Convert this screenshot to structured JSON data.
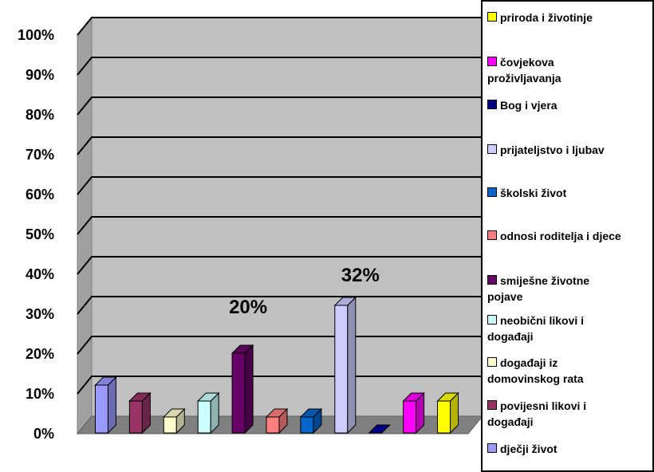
{
  "chart_data": {
    "type": "bar",
    "title": "",
    "xlabel": "",
    "ylabel": "",
    "ylim": [
      0,
      100
    ],
    "y_ticks": [
      "0%",
      "10%",
      "20%",
      "30%",
      "40%",
      "50%",
      "60%",
      "70%",
      "80%",
      "90%",
      "100%"
    ],
    "grid": true,
    "legend_position": "right",
    "series": [
      {
        "name": "dječji život",
        "value": 12,
        "color": "#9999ff"
      },
      {
        "name": "povijesni likovi i događaji",
        "value": 8,
        "color": "#993366"
      },
      {
        "name": "događaji iz domovinskog rata",
        "value": 4,
        "color": "#ffffcc"
      },
      {
        "name": "neobični likovi i događaji",
        "value": 8,
        "color": "#ccffff"
      },
      {
        "name": "smiješne životne pojave",
        "value": 20,
        "color": "#660066"
      },
      {
        "name": "odnosi roditelja i djece",
        "value": 4,
        "color": "#ff8080"
      },
      {
        "name": "školski život",
        "value": 4,
        "color": "#0066cc"
      },
      {
        "name": "prijateljstvo i ljubav",
        "value": 32,
        "color": "#ccccff"
      },
      {
        "name": "Bog i vjera",
        "value": 0,
        "color": "#000080"
      },
      {
        "name": "čovjekova proživljavanja",
        "value": 8,
        "color": "#ff00ff"
      },
      {
        "name": "priroda i životinje",
        "value": 8,
        "color": "#ffff00"
      }
    ],
    "data_labels": [
      {
        "series": "smiješne životne pojave",
        "text": "20%"
      },
      {
        "series": "prijateljstvo i ljubav",
        "text": "32%"
      }
    ]
  },
  "legend": {
    "items": [
      {
        "line1": "priroda i životinje",
        "line2": "",
        "color": "#ffff00"
      },
      {
        "line1": "čovjekova",
        "line2": "proživljavanja",
        "color": "#ff00ff"
      },
      {
        "line1": "Bog i vjera",
        "line2": "",
        "color": "#000080"
      },
      {
        "line1": "prijateljstvo i ljubav",
        "line2": "",
        "color": "#ccccff"
      },
      {
        "line1": "školski život",
        "line2": "",
        "color": "#0066cc"
      },
      {
        "line1": "odnosi roditelja  i djece",
        "line2": "",
        "color": "#ff8080"
      },
      {
        "line1": "smiješne životne",
        "line2": "pojave",
        "color": "#660066"
      },
      {
        "line1": "neobični likovi i",
        "line2": "događaji",
        "color": "#ccffff"
      },
      {
        "line1": "događaji iz",
        "line2": "domovinskog rata",
        "color": "#ffffcc"
      },
      {
        "line1": "povijesni likovi i",
        "line2": "događaji",
        "color": "#993366"
      },
      {
        "line1": "dječji život",
        "line2": "",
        "color": "#9999ff"
      }
    ]
  }
}
